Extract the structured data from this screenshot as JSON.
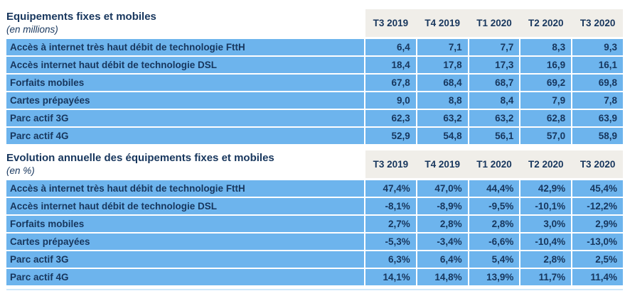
{
  "colors": {
    "row_background_blue": "#6DB4ED",
    "text_navy": "#17365D",
    "quarter_header_band": "#F0EEE9"
  },
  "tables": [
    {
      "title": "Equipements fixes et mobiles",
      "subtitle": "(en millions)",
      "columns": [
        "T3 2019",
        "T4 2019",
        "T1 2020",
        "T2 2020",
        "T3 2020"
      ],
      "rows": [
        {
          "label": "Accès à internet très haut débit de technologie FttH",
          "values": [
            "6,4",
            "7,1",
            "7,7",
            "8,3",
            "9,3"
          ]
        },
        {
          "label": "Accès internet haut débit de technologie DSL",
          "values": [
            "18,4",
            "17,8",
            "17,3",
            "16,9",
            "16,1"
          ]
        },
        {
          "label": "Forfaits mobiles",
          "values": [
            "67,8",
            "68,4",
            "68,7",
            "69,2",
            "69,8"
          ]
        },
        {
          "label": "Cartes prépayées",
          "values": [
            "9,0",
            "8,8",
            "8,4",
            "7,9",
            "7,8"
          ]
        },
        {
          "label": "Parc actif 3G",
          "values": [
            "62,3",
            "63,2",
            "63,2",
            "62,8",
            "63,9"
          ]
        },
        {
          "label": "Parc actif 4G",
          "values": [
            "52,9",
            "54,8",
            "56,1",
            "57,0",
            "58,9"
          ]
        }
      ]
    },
    {
      "title": "Evolution annuelle des équipements fixes et mobiles",
      "subtitle": "(en %)",
      "columns": [
        "T3 2019",
        "T4 2019",
        "T1 2020",
        "T2 2020",
        "T3 2020"
      ],
      "rows": [
        {
          "label": "Accès à internet très haut débit de technologie FttH",
          "values": [
            "47,4%",
            "47,0%",
            "44,4%",
            "42,9%",
            "45,4%"
          ]
        },
        {
          "label": "Accès internet haut débit de technologie DSL",
          "values": [
            "-8,1%",
            "-8,9%",
            "-9,5%",
            "-10,1%",
            "-12,2%"
          ]
        },
        {
          "label": "Forfaits mobiles",
          "values": [
            "2,7%",
            "2,8%",
            "2,8%",
            "3,0%",
            "2,9%"
          ]
        },
        {
          "label": "Cartes prépayées",
          "values": [
            "-5,3%",
            "-3,4%",
            "-6,6%",
            "-10,4%",
            "-13,0%"
          ]
        },
        {
          "label": "Parc actif 3G",
          "values": [
            "6,3%",
            "6,4%",
            "5,4%",
            "2,8%",
            "2,5%"
          ]
        },
        {
          "label": "Parc actif 4G",
          "values": [
            "14,1%",
            "14,8%",
            "13,9%",
            "11,7%",
            "11,4%"
          ]
        }
      ]
    }
  ]
}
